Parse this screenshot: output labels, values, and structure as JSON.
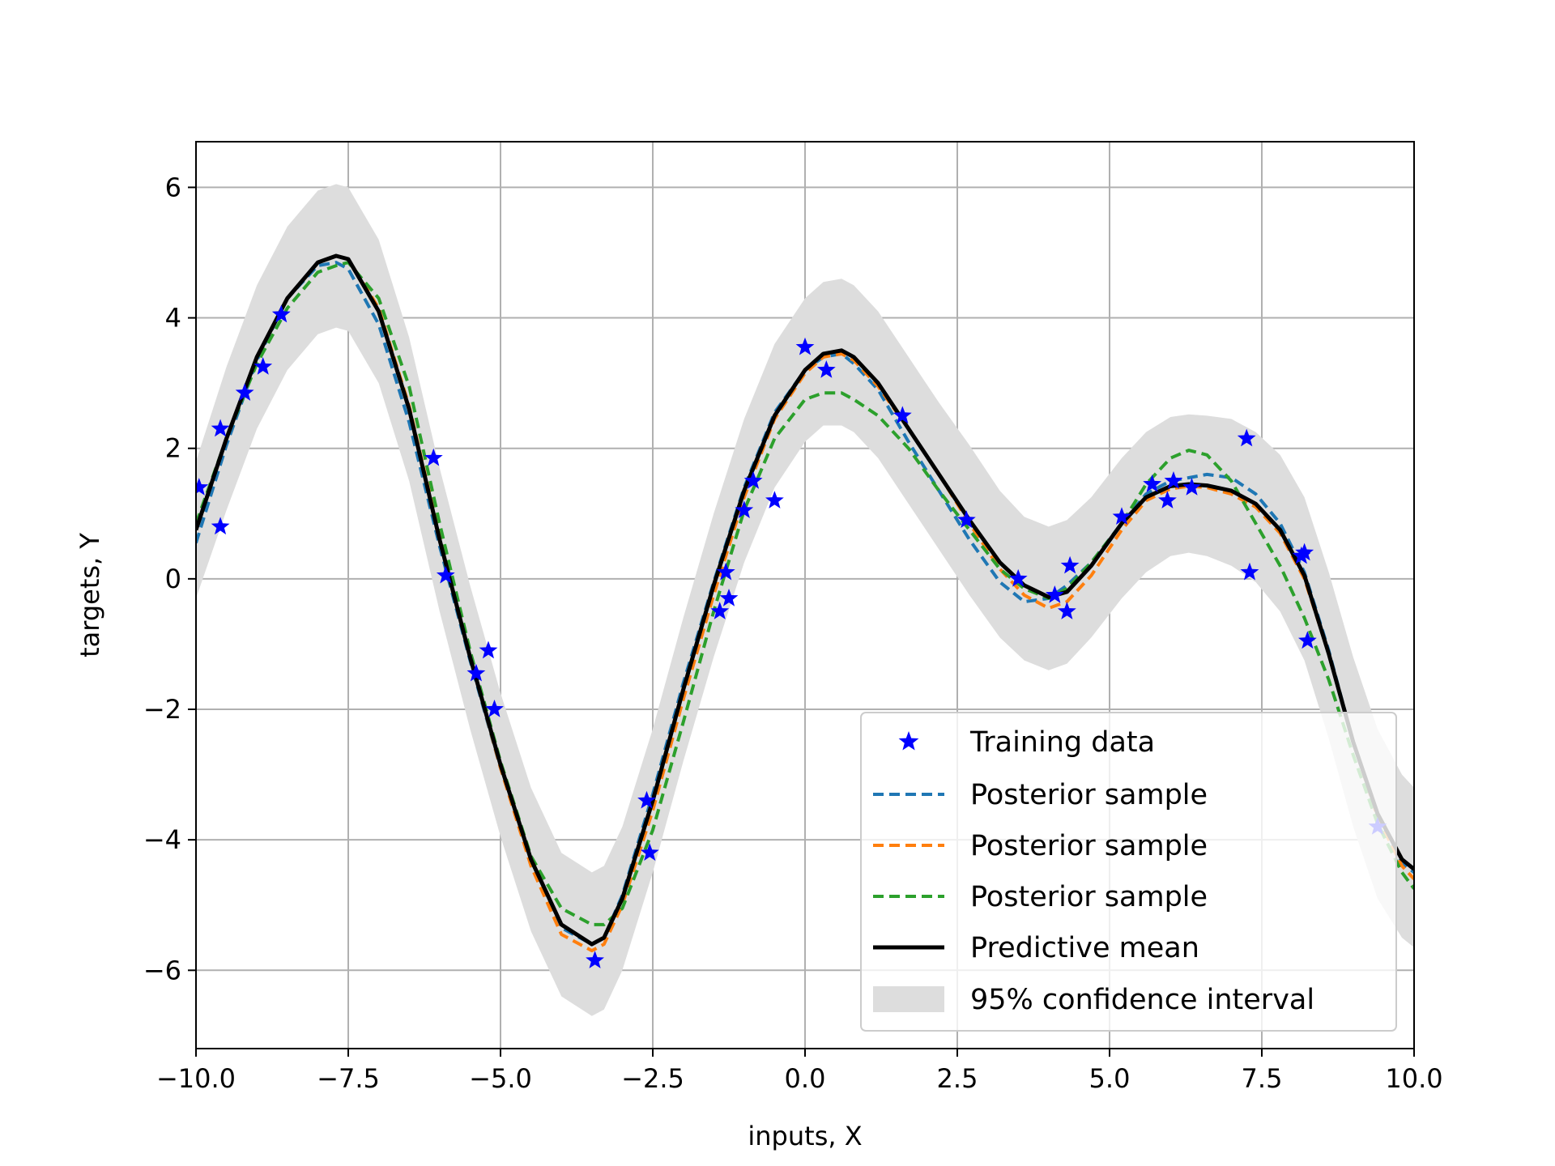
{
  "chart_data": {
    "type": "line",
    "title": "",
    "xlabel": "inputs, X",
    "ylabel": "targets, Y",
    "xlim": [
      -10,
      10
    ],
    "ylim": [
      -7.2,
      6.7
    ],
    "grid": true,
    "legend_position": "bottom-right",
    "xticks": [
      -10,
      -7.5,
      -5,
      -2.5,
      0,
      2.5,
      5,
      7.5,
      10
    ],
    "xtick_labels": [
      "−10.0",
      "−7.5",
      "−5.0",
      "−2.5",
      "0.0",
      "2.5",
      "5.0",
      "7.5",
      "10.0"
    ],
    "yticks": [
      -6,
      -4,
      -2,
      0,
      2,
      4,
      6
    ],
    "ytick_labels": [
      "−6",
      "−4",
      "−2",
      "0",
      "2",
      "4",
      "6"
    ],
    "mean_x": [
      -10,
      -9.5,
      -9,
      -8.5,
      -8,
      -7.7,
      -7.5,
      -7,
      -6.5,
      -6,
      -5.5,
      -5,
      -4.5,
      -4,
      -3.5,
      -3.3,
      -3,
      -2.5,
      -2,
      -1.5,
      -1,
      -0.5,
      0,
      0.3,
      0.6,
      0.8,
      1.2,
      1.7,
      2.2,
      2.7,
      3.2,
      3.6,
      4,
      4.3,
      4.7,
      5.2,
      5.6,
      6,
      6.3,
      6.6,
      7,
      7.4,
      7.8,
      8.2,
      8.6,
      9,
      9.4,
      9.8,
      10
    ],
    "mean_y": [
      0.75,
      2.15,
      3.4,
      4.3,
      4.85,
      4.95,
      4.9,
      4.1,
      2.6,
      0.6,
      -1.2,
      -2.85,
      -4.3,
      -5.3,
      -5.6,
      -5.5,
      -4.9,
      -3.4,
      -1.7,
      -0.1,
      1.35,
      2.5,
      3.2,
      3.45,
      3.5,
      3.4,
      3.0,
      2.3,
      1.6,
      0.9,
      0.25,
      -0.1,
      -0.28,
      -0.2,
      0.2,
      0.85,
      1.25,
      1.42,
      1.45,
      1.43,
      1.35,
      1.15,
      0.75,
      0.05,
      -1.15,
      -2.5,
      -3.6,
      -4.3,
      -4.45
    ],
    "ci_lower": [
      -0.3,
      1.05,
      2.3,
      3.2,
      3.75,
      3.85,
      3.8,
      3.0,
      1.5,
      -0.5,
      -2.3,
      -3.95,
      -5.4,
      -6.4,
      -6.7,
      -6.6,
      -6.0,
      -4.5,
      -2.8,
      -1.2,
      0.25,
      1.4,
      2.1,
      2.35,
      2.35,
      2.25,
      1.85,
      1.15,
      0.45,
      -0.25,
      -0.9,
      -1.25,
      -1.4,
      -1.3,
      -0.9,
      -0.3,
      0.1,
      0.35,
      0.4,
      0.35,
      0.2,
      -0.05,
      -0.5,
      -1.25,
      -2.45,
      -3.8,
      -4.9,
      -5.5,
      -5.65
    ],
    "ci_upper": [
      1.8,
      3.25,
      4.5,
      5.4,
      5.95,
      6.05,
      6.0,
      5.2,
      3.7,
      1.7,
      -0.1,
      -1.75,
      -3.2,
      -4.2,
      -4.5,
      -4.4,
      -3.8,
      -2.3,
      -0.6,
      1.0,
      2.45,
      3.6,
      4.3,
      4.55,
      4.6,
      4.5,
      4.1,
      3.4,
      2.7,
      2.05,
      1.35,
      0.95,
      0.8,
      0.9,
      1.25,
      1.85,
      2.25,
      2.48,
      2.52,
      2.5,
      2.45,
      2.25,
      1.9,
      1.25,
      0.1,
      -1.2,
      -2.3,
      -3.0,
      -3.2
    ],
    "series": [
      {
        "name": "Posterior sample",
        "color": "#1f77b4",
        "x": [
          -10,
          -9.5,
          -9,
          -8.5,
          -8,
          -7.7,
          -7.5,
          -7,
          -6.5,
          -6,
          -5.5,
          -5,
          -4.5,
          -4,
          -3.5,
          -3.3,
          -3,
          -2.5,
          -2,
          -1.5,
          -1,
          -0.5,
          0,
          0.3,
          0.6,
          0.8,
          1.2,
          1.7,
          2.2,
          2.7,
          3.2,
          3.6,
          4,
          4.3,
          4.7,
          5.2,
          5.6,
          6,
          6.3,
          6.6,
          7,
          7.4,
          7.8,
          8.2,
          8.6,
          9,
          9.4,
          9.8,
          10
        ],
        "y": [
          0.55,
          2.05,
          3.35,
          4.3,
          4.8,
          4.85,
          4.75,
          3.9,
          2.4,
          0.5,
          -1.25,
          -2.9,
          -4.35,
          -5.35,
          -5.6,
          -5.5,
          -4.85,
          -3.3,
          -1.6,
          -0.05,
          1.4,
          2.55,
          3.2,
          3.4,
          3.45,
          3.3,
          2.9,
          2.1,
          1.35,
          0.6,
          -0.05,
          -0.35,
          -0.3,
          -0.1,
          0.25,
          0.85,
          1.3,
          1.5,
          1.55,
          1.6,
          1.55,
          1.3,
          0.85,
          0.1,
          -1.1,
          -2.5,
          -3.65,
          -4.35,
          -4.5
        ]
      },
      {
        "name": "Posterior sample",
        "color": "#ff7f0e",
        "x": [
          -10,
          -9.5,
          -9,
          -8.5,
          -8,
          -7.7,
          -7.5,
          -7,
          -6.5,
          -6,
          -5.5,
          -5,
          -4.5,
          -4,
          -3.5,
          -3.3,
          -3,
          -2.5,
          -2,
          -1.5,
          -1,
          -0.5,
          0,
          0.3,
          0.6,
          0.8,
          1.2,
          1.7,
          2.2,
          2.7,
          3.2,
          3.6,
          4,
          4.3,
          4.7,
          5.2,
          5.6,
          6,
          6.3,
          6.6,
          7,
          7.4,
          7.8,
          8.2,
          8.6,
          9,
          9.4,
          9.8,
          10
        ],
        "y": [
          0.75,
          2.15,
          3.4,
          4.3,
          4.85,
          4.95,
          4.9,
          4.15,
          2.65,
          0.65,
          -1.2,
          -2.9,
          -4.4,
          -5.45,
          -5.7,
          -5.6,
          -5.0,
          -3.55,
          -1.85,
          -0.25,
          1.25,
          2.45,
          3.15,
          3.4,
          3.45,
          3.35,
          2.95,
          2.3,
          1.6,
          0.85,
          0.15,
          -0.25,
          -0.45,
          -0.35,
          0.05,
          0.75,
          1.2,
          1.38,
          1.42,
          1.4,
          1.3,
          1.1,
          0.7,
          0.0,
          -1.15,
          -2.5,
          -3.65,
          -4.4,
          -4.6
        ]
      },
      {
        "name": "Posterior sample",
        "color": "#2ca02c",
        "x": [
          -10,
          -9.5,
          -9,
          -8.5,
          -8,
          -7.7,
          -7.5,
          -7,
          -6.5,
          -6,
          -5.5,
          -5,
          -4.5,
          -4,
          -3.5,
          -3.3,
          -3,
          -2.5,
          -2,
          -1.5,
          -1,
          -0.5,
          0,
          0.3,
          0.6,
          0.8,
          1.2,
          1.7,
          2.2,
          2.7,
          3.2,
          3.6,
          4,
          4.3,
          4.7,
          5.2,
          5.6,
          6,
          6.3,
          6.6,
          7,
          7.4,
          7.8,
          8.2,
          8.6,
          9,
          9.4,
          9.8,
          10
        ],
        "y": [
          0.85,
          2.15,
          3.3,
          4.15,
          4.7,
          4.8,
          4.85,
          4.3,
          2.95,
          0.85,
          -1.1,
          -2.8,
          -4.25,
          -5.05,
          -5.3,
          -5.3,
          -5.05,
          -3.85,
          -2.2,
          -0.5,
          1.05,
          2.15,
          2.75,
          2.85,
          2.85,
          2.75,
          2.5,
          2.0,
          1.35,
          0.75,
          0.15,
          -0.15,
          -0.3,
          -0.15,
          0.25,
          0.85,
          1.45,
          1.85,
          1.97,
          1.9,
          1.5,
          0.85,
          0.2,
          -0.6,
          -1.55,
          -2.7,
          -3.75,
          -4.5,
          -4.75
        ]
      },
      {
        "name": "Predictive mean",
        "color": "#000000",
        "x": [
          -10,
          -9.5,
          -9,
          -8.5,
          -8,
          -7.7,
          -7.5,
          -7,
          -6.5,
          -6,
          -5.5,
          -5,
          -4.5,
          -4,
          -3.5,
          -3.3,
          -3,
          -2.5,
          -2,
          -1.5,
          -1,
          -0.5,
          0,
          0.3,
          0.6,
          0.8,
          1.2,
          1.7,
          2.2,
          2.7,
          3.2,
          3.6,
          4,
          4.3,
          4.7,
          5.2,
          5.6,
          6,
          6.3,
          6.6,
          7,
          7.4,
          7.8,
          8.2,
          8.6,
          9,
          9.4,
          9.8,
          10
        ],
        "y": [
          0.75,
          2.15,
          3.4,
          4.3,
          4.85,
          4.95,
          4.9,
          4.1,
          2.6,
          0.6,
          -1.2,
          -2.85,
          -4.3,
          -5.3,
          -5.6,
          -5.5,
          -4.9,
          -3.4,
          -1.7,
          -0.1,
          1.35,
          2.5,
          3.2,
          3.45,
          3.5,
          3.4,
          3.0,
          2.3,
          1.6,
          0.9,
          0.25,
          -0.1,
          -0.28,
          -0.2,
          0.2,
          0.85,
          1.25,
          1.42,
          1.45,
          1.43,
          1.35,
          1.15,
          0.75,
          0.05,
          -1.15,
          -2.5,
          -3.6,
          -4.3,
          -4.45
        ]
      }
    ],
    "training_data": {
      "name": "Training data",
      "color": "#0000ff",
      "x": [
        -9.95,
        -9.6,
        -9.6,
        -9.2,
        -8.9,
        -8.6,
        -6.1,
        -5.9,
        -5.4,
        -5.2,
        -5.1,
        -3.45,
        -2.6,
        -2.55,
        -1.4,
        -1.3,
        -1.25,
        -1.0,
        -0.85,
        -0.5,
        0.0,
        0.35,
        1.6,
        2.65,
        3.5,
        4.1,
        4.3,
        4.35,
        5.2,
        5.7,
        5.95,
        6.05,
        6.35,
        7.25,
        7.3,
        8.15,
        8.2,
        8.25,
        9.4
      ],
      "y": [
        1.4,
        0.8,
        2.3,
        2.85,
        3.25,
        4.05,
        1.85,
        0.05,
        -1.45,
        -1.1,
        -2.0,
        -5.85,
        -3.4,
        -4.2,
        -0.5,
        0.1,
        -0.3,
        1.05,
        1.5,
        1.2,
        3.55,
        3.2,
        2.5,
        0.9,
        0.0,
        -0.25,
        -0.5,
        0.2,
        0.95,
        1.45,
        1.2,
        1.5,
        1.4,
        2.15,
        0.1,
        0.35,
        0.4,
        -0.95,
        -3.8
      ]
    },
    "legend": {
      "training": "Training data",
      "sample1": "Posterior sample",
      "sample2": "Posterior sample",
      "sample3": "Posterior sample",
      "mean": "Predictive mean",
      "ci": "95% confidence interval"
    }
  }
}
